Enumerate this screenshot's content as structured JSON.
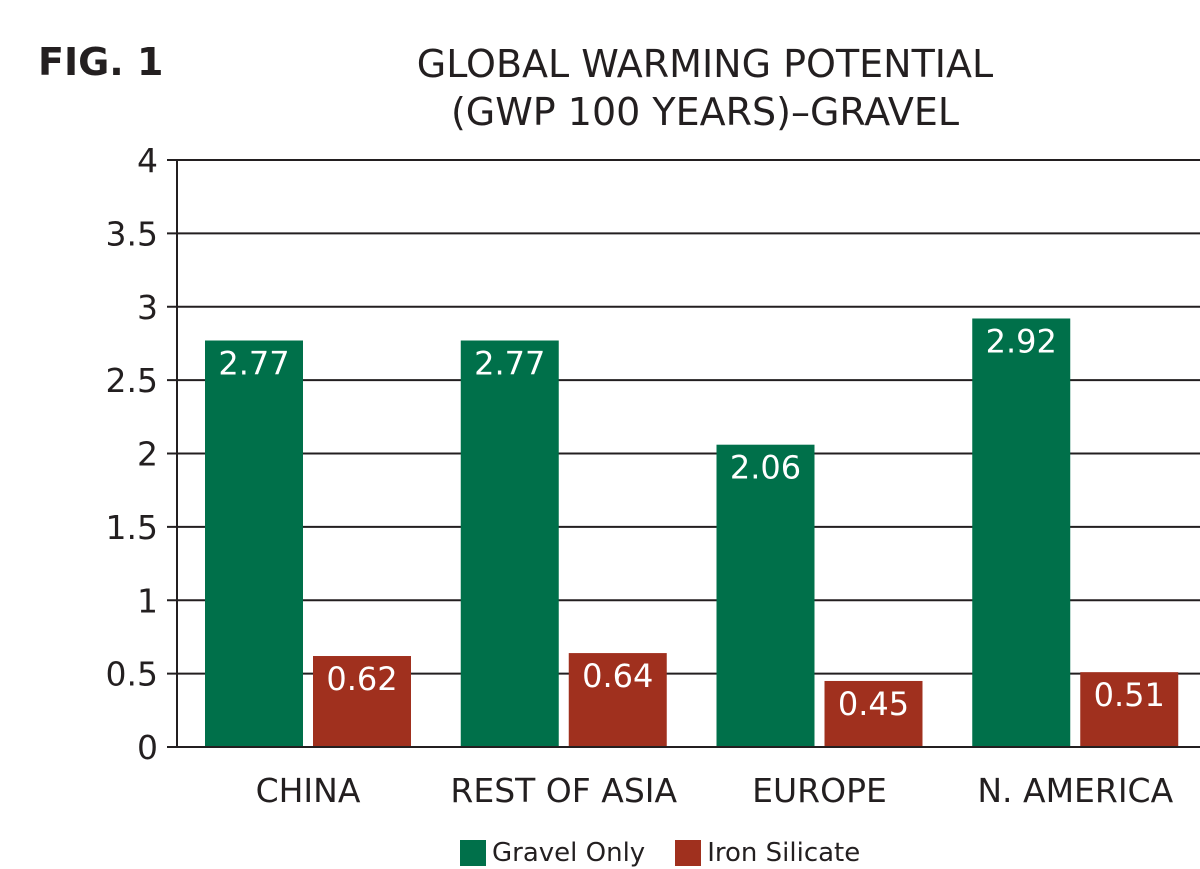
{
  "figure_label": "FIG. 1",
  "chart_data": {
    "type": "bar",
    "title": [
      "GLOBAL WARMING POTENTIAL",
      "(GWP 100 YEARS)–GRAVEL"
    ],
    "xlabel": "",
    "ylabel": "",
    "ylim": [
      0,
      4
    ],
    "yticks": [
      "0",
      "0.5",
      "1",
      "1.5",
      "2",
      "2.5",
      "3",
      "3.5",
      "4"
    ],
    "grid": true,
    "legend_position": "bottom",
    "categories": [
      "CHINA",
      "REST OF ASIA",
      "EUROPE",
      "N. AMERICA"
    ],
    "series": [
      {
        "name": "Gravel Only",
        "color": "#00704a",
        "values": [
          2.77,
          2.77,
          2.06,
          2.92
        ],
        "labels": [
          "2.77",
          "2.77",
          "2.06",
          "2.92"
        ]
      },
      {
        "name": "Iron Silicate",
        "color": "#a0301e",
        "values": [
          0.62,
          0.64,
          0.45,
          0.51
        ],
        "labels": [
          "0.62",
          "0.64",
          "0.45",
          "0.51"
        ]
      }
    ]
  }
}
